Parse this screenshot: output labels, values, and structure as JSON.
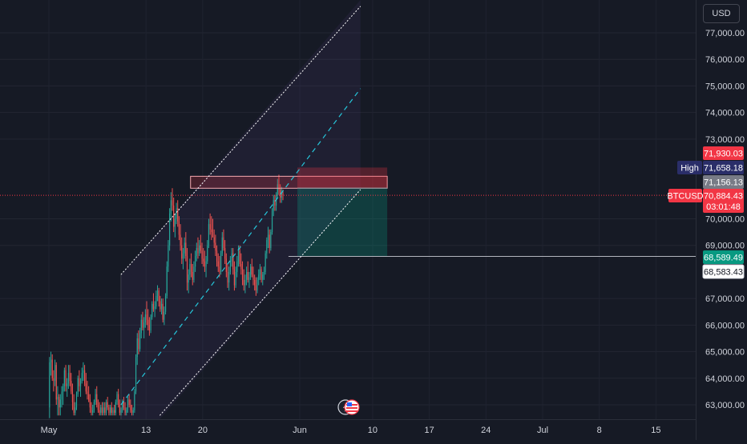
{
  "currency_button": "USD",
  "price_tags": {
    "target": "71,930.03",
    "high_label": "High",
    "high": "71,658.18",
    "entry": "71,156.13",
    "symbol": "BTCUSD",
    "last": "70,884.43",
    "countdown": "03:01:48",
    "stop": "68,589.49",
    "low_marker": "68,583.43"
  },
  "colors": {
    "background": "#161a25",
    "up": "#26a69a",
    "down": "#ef5350",
    "channel_line": "#ffffff",
    "channel_mid": "#26c6da",
    "target_tag": "#f23645",
    "high_tag": "#2a2e69",
    "entry_tag": "#787b86",
    "stop_tag": "#089981"
  },
  "chart_data": {
    "type": "candlestick",
    "symbol": "BTCUSD",
    "currency": "USD",
    "ylim": [
      62600,
      78000
    ],
    "y_ticks": [
      "63,000.00",
      "64,000.00",
      "65,000.00",
      "66,000.00",
      "67,000.00",
      "69,000.00",
      "70,000.00",
      "73,000.00",
      "74,000.00",
      "75,000.00",
      "76,000.00",
      "77,000.00"
    ],
    "y_tick_values": [
      63000,
      64000,
      65000,
      66000,
      67000,
      69000,
      70000,
      73000,
      74000,
      75000,
      76000,
      77000
    ],
    "x_labels": [
      "May",
      "13",
      "20",
      "Jun",
      "10",
      "17",
      "24",
      "Jul",
      "8",
      "15"
    ],
    "x_label_offsets_days": [
      0,
      12,
      19,
      31,
      40,
      47,
      54,
      61,
      68,
      75
    ],
    "bar_interval_hours": 4,
    "series_start": "May 1",
    "ohlc": [
      [
        62900,
        64800,
        62500,
        64600
      ],
      [
        64600,
        65000,
        64100,
        64700
      ],
      [
        64700,
        64900,
        63900,
        64000
      ],
      [
        64000,
        64300,
        63500,
        63900
      ],
      [
        63900,
        64700,
        63700,
        64500
      ],
      [
        64500,
        64600,
        63000,
        63200
      ],
      [
        63200,
        63700,
        62600,
        63300
      ],
      [
        63300,
        63400,
        62600,
        62900
      ],
      [
        62900,
        63400,
        62600,
        63200
      ],
      [
        63200,
        63700,
        62900,
        63500
      ],
      [
        63500,
        63800,
        63000,
        63700
      ],
      [
        63700,
        64400,
        63500,
        64300
      ],
      [
        64300,
        64500,
        63500,
        63700
      ],
      [
        63700,
        64000,
        63300,
        63800
      ],
      [
        63800,
        64500,
        63600,
        64200
      ],
      [
        64200,
        64500,
        63700,
        63900
      ],
      [
        63900,
        64200,
        63400,
        63500
      ],
      [
        63500,
        63800,
        62800,
        63100
      ],
      [
        63100,
        63400,
        62600,
        62700
      ],
      [
        62700,
        63100,
        62600,
        62900
      ],
      [
        62900,
        63500,
        62800,
        63400
      ],
      [
        63400,
        64100,
        63300,
        64000
      ],
      [
        64000,
        64300,
        63500,
        63700
      ],
      [
        63700,
        64000,
        63300,
        63900
      ],
      [
        63900,
        64400,
        63800,
        64200
      ],
      [
        64200,
        64600,
        63900,
        64300
      ],
      [
        64300,
        64500,
        63700,
        63800
      ],
      [
        63800,
        64200,
        63400,
        63500
      ],
      [
        63500,
        63900,
        63200,
        63400
      ],
      [
        63400,
        63700,
        63100,
        63200
      ],
      [
        63200,
        63400,
        62700,
        62900
      ],
      [
        62900,
        63100,
        62600,
        62700
      ],
      [
        62700,
        63000,
        62600,
        62800
      ],
      [
        62800,
        63200,
        62700,
        63100
      ],
      [
        63100,
        63600,
        63000,
        63400
      ],
      [
        63400,
        63700,
        62900,
        63000
      ],
      [
        63000,
        63200,
        62700,
        62800
      ],
      [
        62800,
        63100,
        62600,
        62700
      ],
      [
        62700,
        63000,
        62600,
        62900
      ],
      [
        62900,
        63100,
        62600,
        62700
      ],
      [
        62700,
        63100,
        62600,
        62900
      ],
      [
        62900,
        63100,
        62600,
        62700
      ],
      [
        62700,
        63200,
        62600,
        63100
      ],
      [
        63100,
        63300,
        62800,
        62900
      ],
      [
        62900,
        63000,
        62600,
        62700
      ],
      [
        62700,
        63000,
        62600,
        62900
      ],
      [
        62900,
        63100,
        62600,
        62700
      ],
      [
        62700,
        62900,
        62600,
        62800
      ],
      [
        62800,
        63000,
        62600,
        62700
      ],
      [
        62700,
        63200,
        62600,
        63100
      ],
      [
        63100,
        63500,
        63000,
        63400
      ],
      [
        63400,
        63600,
        62900,
        63000
      ],
      [
        63000,
        63200,
        62600,
        62700
      ],
      [
        62700,
        62900,
        62600,
        62800
      ],
      [
        62800,
        63200,
        62700,
        63100
      ],
      [
        63100,
        63300,
        62800,
        62900
      ],
      [
        62900,
        63100,
        62600,
        62700
      ],
      [
        62700,
        62900,
        62600,
        62800
      ],
      [
        62800,
        63300,
        62700,
        63200
      ],
      [
        63200,
        63400,
        62900,
        63000
      ],
      [
        63000,
        63200,
        62700,
        62800
      ],
      [
        62800,
        63000,
        62600,
        62700
      ],
      [
        62700,
        62900,
        62600,
        62800
      ],
      [
        62800,
        63600,
        62700,
        63500
      ],
      [
        63500,
        64900,
        63400,
        64800
      ],
      [
        64800,
        65700,
        64500,
        65500
      ],
      [
        65500,
        65800,
        64900,
        65100
      ],
      [
        65100,
        65900,
        65000,
        65700
      ],
      [
        65700,
        66400,
        65500,
        66200
      ],
      [
        66200,
        66500,
        65800,
        65900
      ],
      [
        65900,
        66300,
        65500,
        66100
      ],
      [
        66100,
        66600,
        65900,
        66400
      ],
      [
        66400,
        66900,
        66000,
        66200
      ],
      [
        66200,
        66600,
        65800,
        66000
      ],
      [
        66000,
        66300,
        65600,
        65800
      ],
      [
        65800,
        66400,
        65700,
        66300
      ],
      [
        66300,
        66900,
        66200,
        66800
      ],
      [
        66800,
        67200,
        66500,
        66600
      ],
      [
        66600,
        66900,
        66300,
        66700
      ],
      [
        66700,
        67300,
        66600,
        67100
      ],
      [
        67100,
        67500,
        66900,
        67300
      ],
      [
        67300,
        67400,
        66700,
        66900
      ],
      [
        66900,
        67100,
        66500,
        66600
      ],
      [
        66600,
        67000,
        66400,
        66800
      ],
      [
        66800,
        67000,
        66100,
        66200
      ],
      [
        66200,
        66700,
        66000,
        66500
      ],
      [
        66500,
        67200,
        66400,
        67100
      ],
      [
        67100,
        68400,
        67000,
        68200
      ],
      [
        68200,
        69200,
        68000,
        69000
      ],
      [
        69000,
        70400,
        68800,
        70200
      ],
      [
        70200,
        71000,
        69900,
        70700
      ],
      [
        70700,
        71150,
        70300,
        70500
      ],
      [
        70500,
        70800,
        69500,
        69700
      ],
      [
        69700,
        70200,
        69300,
        70000
      ],
      [
        70000,
        70600,
        69800,
        70400
      ],
      [
        70400,
        70700,
        69700,
        69900
      ],
      [
        69900,
        70100,
        69200,
        69400
      ],
      [
        69400,
        69800,
        68800,
        69000
      ],
      [
        69000,
        69300,
        68300,
        68500
      ],
      [
        68500,
        68900,
        68100,
        68700
      ],
      [
        68700,
        69300,
        68500,
        69100
      ],
      [
        69100,
        69500,
        68400,
        68600
      ],
      [
        68600,
        68900,
        67300,
        67600
      ],
      [
        67600,
        68100,
        67200,
        67900
      ],
      [
        67900,
        68500,
        67700,
        68300
      ],
      [
        68300,
        68700,
        67800,
        68000
      ],
      [
        68000,
        68300,
        67500,
        67700
      ],
      [
        67700,
        68400,
        67600,
        68200
      ],
      [
        68200,
        68800,
        68000,
        68600
      ],
      [
        68600,
        69100,
        68400,
        68900
      ],
      [
        68900,
        69300,
        68500,
        68700
      ],
      [
        68700,
        69200,
        68600,
        69000
      ],
      [
        69000,
        69400,
        68700,
        68800
      ],
      [
        68800,
        69100,
        68300,
        68500
      ],
      [
        68500,
        68900,
        68200,
        68400
      ],
      [
        68400,
        68800,
        68000,
        68200
      ],
      [
        68200,
        68600,
        67800,
        68400
      ],
      [
        68400,
        69200,
        68300,
        69000
      ],
      [
        69000,
        70000,
        68900,
        69800
      ],
      [
        69800,
        70200,
        69400,
        69600
      ],
      [
        69600,
        70100,
        69200,
        69500
      ],
      [
        69500,
        70000,
        69300,
        69300
      ],
      [
        69300,
        69600,
        68900,
        69100
      ],
      [
        69100,
        69400,
        68600,
        68800
      ],
      [
        68800,
        69000,
        68200,
        68400
      ],
      [
        68400,
        68700,
        68000,
        68200
      ],
      [
        68200,
        68600,
        67800,
        68000
      ],
      [
        68000,
        68800,
        67900,
        68700
      ],
      [
        68700,
        69500,
        68600,
        69300
      ],
      [
        69300,
        69600,
        68800,
        68900
      ],
      [
        68900,
        69200,
        68300,
        68500
      ],
      [
        68500,
        68700,
        67800,
        68000
      ],
      [
        68000,
        68300,
        67400,
        67600
      ],
      [
        67600,
        68200,
        67300,
        68000
      ],
      [
        68000,
        68600,
        67900,
        68400
      ],
      [
        68400,
        68900,
        68200,
        68700
      ],
      [
        68700,
        68900,
        67900,
        68100
      ],
      [
        68100,
        68400,
        67300,
        67500
      ],
      [
        67500,
        68200,
        67400,
        68000
      ],
      [
        68000,
        68600,
        67800,
        68400
      ],
      [
        68400,
        69000,
        68200,
        68800
      ],
      [
        68800,
        69000,
        68200,
        68300
      ],
      [
        68300,
        68700,
        67900,
        68100
      ],
      [
        68100,
        68400,
        67500,
        67700
      ],
      [
        67700,
        68100,
        67300,
        67500
      ],
      [
        67500,
        67900,
        67200,
        67700
      ],
      [
        67700,
        68200,
        67500,
        68000
      ],
      [
        68000,
        68400,
        67600,
        67700
      ],
      [
        67700,
        68000,
        67400,
        67800
      ],
      [
        67800,
        68300,
        67700,
        68200
      ],
      [
        68200,
        68500,
        67800,
        67900
      ],
      [
        67900,
        68200,
        67500,
        67700
      ],
      [
        67700,
        67900,
        67300,
        67500
      ],
      [
        67500,
        67800,
        67100,
        67300
      ],
      [
        67300,
        67800,
        67200,
        67700
      ],
      [
        67700,
        68100,
        67500,
        67900
      ],
      [
        67900,
        68300,
        67700,
        68100
      ],
      [
        68100,
        68200,
        67600,
        67700
      ],
      [
        67700,
        68000,
        67500,
        67900
      ],
      [
        67900,
        68200,
        67700,
        68000
      ],
      [
        68000,
        68800,
        67900,
        68700
      ],
      [
        68700,
        69300,
        68500,
        69200
      ],
      [
        69200,
        69700,
        68900,
        69400
      ],
      [
        69400,
        69600,
        68700,
        68900
      ],
      [
        68900,
        69600,
        68800,
        69500
      ],
      [
        69500,
        70400,
        69400,
        70300
      ],
      [
        70300,
        70900,
        70100,
        70700
      ],
      [
        70700,
        70900,
        70300,
        70500
      ],
      [
        70500,
        71000,
        70300,
        70900
      ],
      [
        70900,
        71500,
        70800,
        71300
      ],
      [
        71300,
        71658,
        70900,
        71100
      ],
      [
        71100,
        71300,
        70600,
        70800
      ],
      [
        70800,
        71200,
        70600,
        71000
      ],
      [
        71000,
        71100,
        70700,
        70884
      ]
    ],
    "channel": {
      "upper_line": [
        {
          "day": 8.9,
          "price": 67900
        },
        {
          "day": 38.5,
          "price": 78000
        }
      ],
      "mid_line": [
        {
          "day": 8.9,
          "price": 63000
        },
        {
          "day": 38.5,
          "price": 74900
        }
      ],
      "lower_line": [
        {
          "day": 13.7,
          "price": 62600
        },
        {
          "day": 38.5,
          "price": 71100
        }
      ]
    },
    "resistance_zone": {
      "top": 71600,
      "bottom": 71150,
      "from_day": 17.5,
      "to_day": 41.8
    },
    "position": {
      "type": "short",
      "entry": 71156.13,
      "target": 71930.03,
      "stop": 68589.49,
      "from_day": 30.7,
      "to_day": 41.8
    },
    "horizontal_line": {
      "price": 68583.43,
      "from_day": 29.6
    },
    "current_price": 70884.43
  }
}
